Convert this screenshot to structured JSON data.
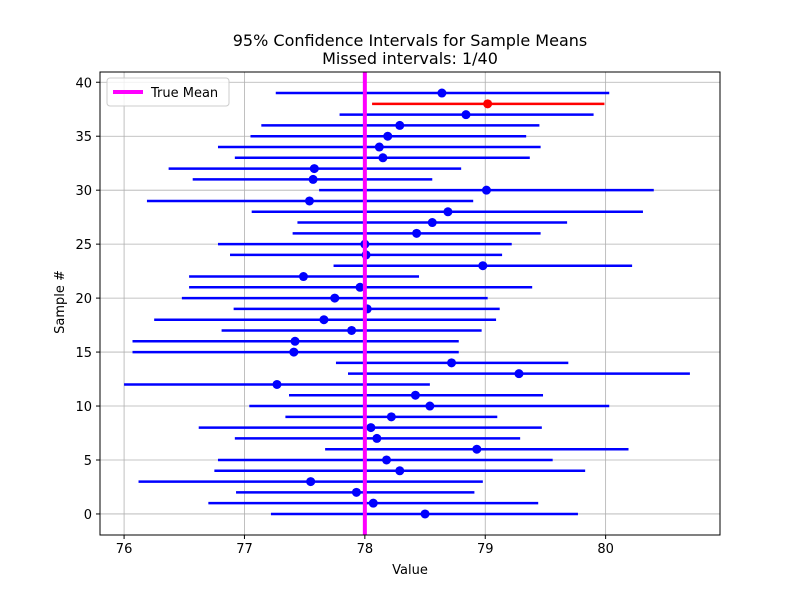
{
  "chart_data": {
    "type": "errorbar",
    "title": "95% Confidence Intervals for Sample Means",
    "subtitle": "Missed intervals: 1/40",
    "xlabel": "Value",
    "ylabel": "Sample #",
    "xlim": [
      75.8,
      80.95
    ],
    "ylim": [
      -1.95,
      40.95
    ],
    "xticks": [
      76,
      77,
      78,
      79,
      80
    ],
    "yticks": [
      0,
      5,
      10,
      15,
      20,
      25,
      30,
      35,
      40
    ],
    "grid": true,
    "legend_position": "top-left",
    "reference_line": {
      "name": "True Mean",
      "value": 78.0,
      "color": "#ff00ff"
    },
    "colors": {
      "covered": "#0000ff",
      "missed": "#ff0000"
    },
    "samples": [
      {
        "y": 0,
        "mean": 78.5,
        "lower": 77.22,
        "upper": 79.77,
        "missed": false
      },
      {
        "y": 1,
        "mean": 78.07,
        "lower": 76.7,
        "upper": 79.44,
        "missed": false
      },
      {
        "y": 2,
        "mean": 77.93,
        "lower": 76.93,
        "upper": 78.91,
        "missed": false
      },
      {
        "y": 3,
        "mean": 77.55,
        "lower": 76.12,
        "upper": 78.98,
        "missed": false
      },
      {
        "y": 4,
        "mean": 78.29,
        "lower": 76.75,
        "upper": 79.83,
        "missed": false
      },
      {
        "y": 5,
        "mean": 78.18,
        "lower": 76.78,
        "upper": 79.56,
        "missed": false
      },
      {
        "y": 6,
        "mean": 78.93,
        "lower": 77.67,
        "upper": 80.19,
        "missed": false
      },
      {
        "y": 7,
        "mean": 78.1,
        "lower": 76.92,
        "upper": 79.29,
        "missed": false
      },
      {
        "y": 8,
        "mean": 78.05,
        "lower": 76.62,
        "upper": 79.47,
        "missed": false
      },
      {
        "y": 9,
        "mean": 78.22,
        "lower": 77.34,
        "upper": 79.1,
        "missed": false
      },
      {
        "y": 10,
        "mean": 78.54,
        "lower": 77.04,
        "upper": 80.03,
        "missed": false
      },
      {
        "y": 11,
        "mean": 78.42,
        "lower": 77.37,
        "upper": 79.48,
        "missed": false
      },
      {
        "y": 12,
        "mean": 77.27,
        "lower": 76.0,
        "upper": 78.54,
        "missed": false
      },
      {
        "y": 13,
        "mean": 79.28,
        "lower": 77.86,
        "upper": 80.7,
        "missed": false
      },
      {
        "y": 14,
        "mean": 78.72,
        "lower": 77.76,
        "upper": 79.69,
        "missed": false
      },
      {
        "y": 15,
        "mean": 77.41,
        "lower": 76.07,
        "upper": 78.78,
        "missed": false
      },
      {
        "y": 16,
        "mean": 77.42,
        "lower": 76.07,
        "upper": 78.78,
        "missed": false
      },
      {
        "y": 17,
        "mean": 77.89,
        "lower": 76.81,
        "upper": 78.97,
        "missed": false
      },
      {
        "y": 18,
        "mean": 77.66,
        "lower": 76.25,
        "upper": 79.09,
        "missed": false
      },
      {
        "y": 19,
        "mean": 78.02,
        "lower": 76.91,
        "upper": 79.12,
        "missed": false
      },
      {
        "y": 20,
        "mean": 77.75,
        "lower": 76.48,
        "upper": 79.02,
        "missed": false
      },
      {
        "y": 21,
        "mean": 77.96,
        "lower": 76.54,
        "upper": 79.39,
        "missed": false
      },
      {
        "y": 22,
        "mean": 77.49,
        "lower": 76.54,
        "upper": 78.45,
        "missed": false
      },
      {
        "y": 23,
        "mean": 78.98,
        "lower": 77.74,
        "upper": 80.22,
        "missed": false
      },
      {
        "y": 24,
        "mean": 78.01,
        "lower": 76.88,
        "upper": 79.14,
        "missed": false
      },
      {
        "y": 25,
        "mean": 78.0,
        "lower": 76.78,
        "upper": 79.22,
        "missed": false
      },
      {
        "y": 26,
        "mean": 78.43,
        "lower": 77.4,
        "upper": 79.46,
        "missed": false
      },
      {
        "y": 27,
        "mean": 78.56,
        "lower": 77.44,
        "upper": 79.68,
        "missed": false
      },
      {
        "y": 28,
        "mean": 78.69,
        "lower": 77.06,
        "upper": 80.31,
        "missed": false
      },
      {
        "y": 29,
        "mean": 77.54,
        "lower": 76.19,
        "upper": 78.9,
        "missed": false
      },
      {
        "y": 30,
        "mean": 79.01,
        "lower": 77.62,
        "upper": 80.4,
        "missed": false
      },
      {
        "y": 31,
        "mean": 77.57,
        "lower": 76.57,
        "upper": 78.56,
        "missed": false
      },
      {
        "y": 32,
        "mean": 77.58,
        "lower": 76.37,
        "upper": 78.8,
        "missed": false
      },
      {
        "y": 33,
        "mean": 78.15,
        "lower": 76.92,
        "upper": 79.37,
        "missed": false
      },
      {
        "y": 34,
        "mean": 78.12,
        "lower": 76.78,
        "upper": 79.46,
        "missed": false
      },
      {
        "y": 35,
        "mean": 78.19,
        "lower": 77.05,
        "upper": 79.34,
        "missed": false
      },
      {
        "y": 36,
        "mean": 78.29,
        "lower": 77.14,
        "upper": 79.45,
        "missed": false
      },
      {
        "y": 37,
        "mean": 78.84,
        "lower": 77.79,
        "upper": 79.9,
        "missed": false
      },
      {
        "y": 38,
        "mean": 79.02,
        "lower": 78.06,
        "upper": 79.99,
        "missed": true
      },
      {
        "y": 39,
        "mean": 78.64,
        "lower": 77.26,
        "upper": 80.03,
        "missed": false
      }
    ]
  }
}
